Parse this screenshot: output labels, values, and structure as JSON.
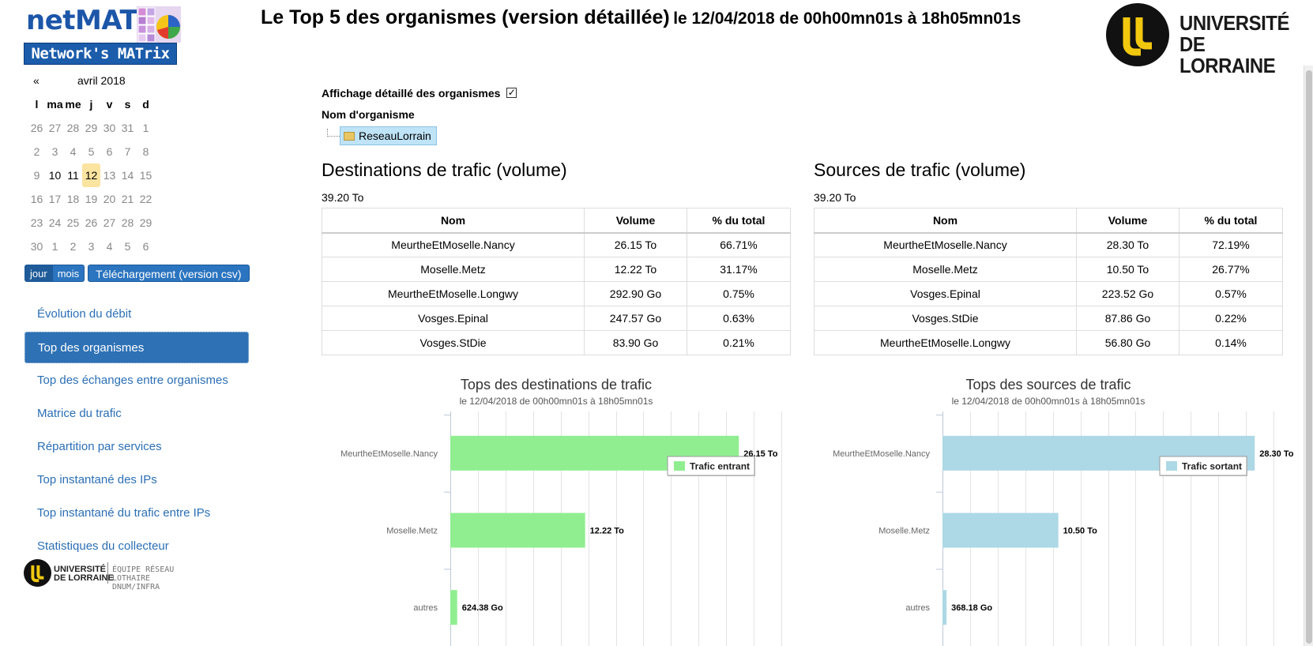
{
  "header": {
    "logo_word": "netMAT",
    "logo_tagline": "Network's MATrix",
    "title_main": "Le Top 5 des organismes (version détaillée)",
    "title_date": "le 12/04/2018 de 00h00mn01s à 18h05mn01s",
    "university_line1": "UNIVERSITÉ",
    "university_line2": "DE LORRAINE"
  },
  "calendar": {
    "prev": "«",
    "month": "avril 2018",
    "weekdays": [
      "l",
      "ma",
      "me",
      "j",
      "v",
      "s",
      "d"
    ],
    "weeks": [
      [
        "26",
        "27",
        "28",
        "29",
        "30",
        "31",
        "1"
      ],
      [
        "2",
        "3",
        "4",
        "5",
        "6",
        "7",
        "8"
      ],
      [
        "9",
        "10",
        "11",
        "12",
        "13",
        "14",
        "15"
      ],
      [
        "16",
        "17",
        "18",
        "19",
        "20",
        "21",
        "22"
      ],
      [
        "23",
        "24",
        "25",
        "26",
        "27",
        "28",
        "29"
      ],
      [
        "30",
        "1",
        "2",
        "3",
        "4",
        "5",
        "6"
      ]
    ],
    "selected_day": "12"
  },
  "view_buttons": {
    "day": "jour",
    "month": "mois",
    "download": "Téléchargement (version csv)"
  },
  "menu": [
    {
      "label": "Évolution du débit",
      "active": false
    },
    {
      "label": "Top des organismes",
      "active": true
    },
    {
      "label": "Top des échanges entre organismes",
      "active": false
    },
    {
      "label": "Matrice du trafic",
      "active": false
    },
    {
      "label": "Répartition par services",
      "active": false
    },
    {
      "label": "Top instantané des IPs",
      "active": false
    },
    {
      "label": "Top instantané du trafic entre IPs",
      "active": false
    },
    {
      "label": "Statistiques du collecteur",
      "active": false
    }
  ],
  "footer_logo": {
    "line1": "UNIVERSITÉ",
    "line2": "DE LORRAINE",
    "team1": "ÉQUIPE RÉSEAU LOTHAIRE",
    "team2": "DNUM/INFRA"
  },
  "filters": {
    "detail_label": "Affichage détaillé des organismes",
    "detail_checked": true,
    "org_label": "Nom d'organisme",
    "org_node": "ReseauLorrain"
  },
  "columns": [
    "Nom",
    "Volume",
    "% du total"
  ],
  "destinations": {
    "title": "Destinations de trafic (volume)",
    "total": "39.20 To",
    "rows": [
      [
        "MeurtheEtMoselle.Nancy",
        "26.15 To",
        "66.71%"
      ],
      [
        "Moselle.Metz",
        "12.22 To",
        "31.17%"
      ],
      [
        "MeurtheEtMoselle.Longwy",
        "292.90 Go",
        "0.75%"
      ],
      [
        "Vosges.Epinal",
        "247.57 Go",
        "0.63%"
      ],
      [
        "Vosges.StDie",
        "83.90 Go",
        "0.21%"
      ]
    ]
  },
  "sources": {
    "title": "Sources de trafic (volume)",
    "total": "39.20 To",
    "rows": [
      [
        "MeurtheEtMoselle.Nancy",
        "28.30 To",
        "72.19%"
      ],
      [
        "Moselle.Metz",
        "10.50 To",
        "26.77%"
      ],
      [
        "Vosges.Epinal",
        "223.52 Go",
        "0.57%"
      ],
      [
        "Vosges.StDie",
        "87.86 Go",
        "0.22%"
      ],
      [
        "MeurtheEtMoselle.Longwy",
        "56.80 Go",
        "0.14%"
      ]
    ]
  },
  "chart_data": [
    {
      "type": "bar",
      "orientation": "horizontal",
      "title": "Tops des destinations de trafic",
      "subtitle": "le 12/04/2018 de 00h00mn01s à 18h05mn01s",
      "categories": [
        "MeurtheEtMoselle.Nancy",
        "Moselle.Metz",
        "autres"
      ],
      "series": [
        {
          "name": "Trafic entrant",
          "values": [
            26.15,
            12.22,
            0.62438
          ],
          "labels": [
            "26.15 To",
            "12.22 To",
            "624.38 Go"
          ]
        }
      ],
      "unit": "To",
      "xlim": [
        0,
        30
      ],
      "grid": true,
      "legend_position": "top-right",
      "color": "#90ee90"
    },
    {
      "type": "bar",
      "orientation": "horizontal",
      "title": "Tops des sources de trafic",
      "subtitle": "le 12/04/2018 de 00h00mn01s à 18h05mn01s",
      "categories": [
        "MeurtheEtMoselle.Nancy",
        "Moselle.Metz",
        "autres"
      ],
      "series": [
        {
          "name": "Trafic sortant",
          "values": [
            28.3,
            10.5,
            0.36818
          ],
          "labels": [
            "28.30 To",
            "10.50 To",
            "368.18 Go"
          ]
        }
      ],
      "unit": "To",
      "xlim": [
        0,
        30
      ],
      "grid": true,
      "legend_position": "top-right",
      "color": "#add8e6"
    }
  ]
}
